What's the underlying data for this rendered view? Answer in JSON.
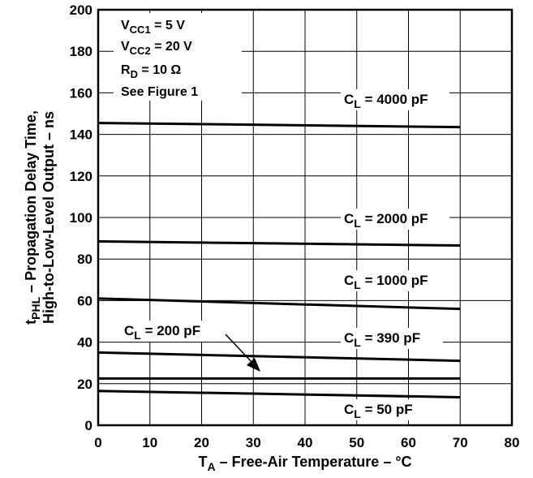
{
  "chart_data": {
    "type": "line",
    "xlabel": {
      "main": "T",
      "sub": "A",
      "rest": " – Free-Air Temperature – °C"
    },
    "ylabel": {
      "line1": {
        "main": "t",
        "sub": "PHL",
        "rest": " – Propagation Delay Time,"
      },
      "line2": "High-to-Low-Level Output – ns"
    },
    "xlim": [
      0,
      80
    ],
    "ylim": [
      0,
      200
    ],
    "x_ticks": [
      "0",
      "10",
      "20",
      "30",
      "40",
      "50",
      "60",
      "70",
      "80"
    ],
    "y_ticks": [
      "0",
      "20",
      "40",
      "60",
      "80",
      "100",
      "120",
      "140",
      "160",
      "180",
      "200"
    ],
    "grid": true,
    "conditions": [
      {
        "main": "V",
        "sub": "CC1",
        "rest": " = 5 V"
      },
      {
        "main": "V",
        "sub": "CC2",
        "rest": " = 20 V"
      },
      {
        "main": "R",
        "sub": "D",
        "rest": " = 10 Ω"
      },
      {
        "main": "See Figure 1",
        "sub": "",
        "rest": ""
      }
    ],
    "series": [
      {
        "name": "C_L = 4000 pF",
        "label": {
          "main": "C",
          "sub": "L",
          "rest": " = 4000 pF"
        },
        "x": [
          0,
          70
        ],
        "y": [
          145.5,
          143.5
        ]
      },
      {
        "name": "C_L = 2000 pF",
        "label": {
          "main": "C",
          "sub": "L",
          "rest": " = 2000 pF"
        },
        "x": [
          0,
          70
        ],
        "y": [
          88.5,
          86.5
        ]
      },
      {
        "name": "C_L = 1000 pF",
        "label": {
          "main": "C",
          "sub": "L",
          "rest": " = 1000 pF"
        },
        "x": [
          0,
          70
        ],
        "y": [
          61,
          56
        ]
      },
      {
        "name": "C_L = 390 pF",
        "label": {
          "main": "C",
          "sub": "L",
          "rest": " = 390 pF"
        },
        "x": [
          0,
          70
        ],
        "y": [
          35,
          31
        ]
      },
      {
        "name": "C_L = 200 pF",
        "label": {
          "main": "C",
          "sub": "L",
          "rest": " = 200 pF"
        },
        "x": [
          0,
          70
        ],
        "y": [
          22.5,
          22.5
        ]
      },
      {
        "name": "C_L = 50 pF",
        "label": {
          "main": "C",
          "sub": "L",
          "rest": " = 50 pF"
        },
        "x": [
          0,
          70
        ],
        "y": [
          16.5,
          13.5
        ]
      }
    ]
  }
}
